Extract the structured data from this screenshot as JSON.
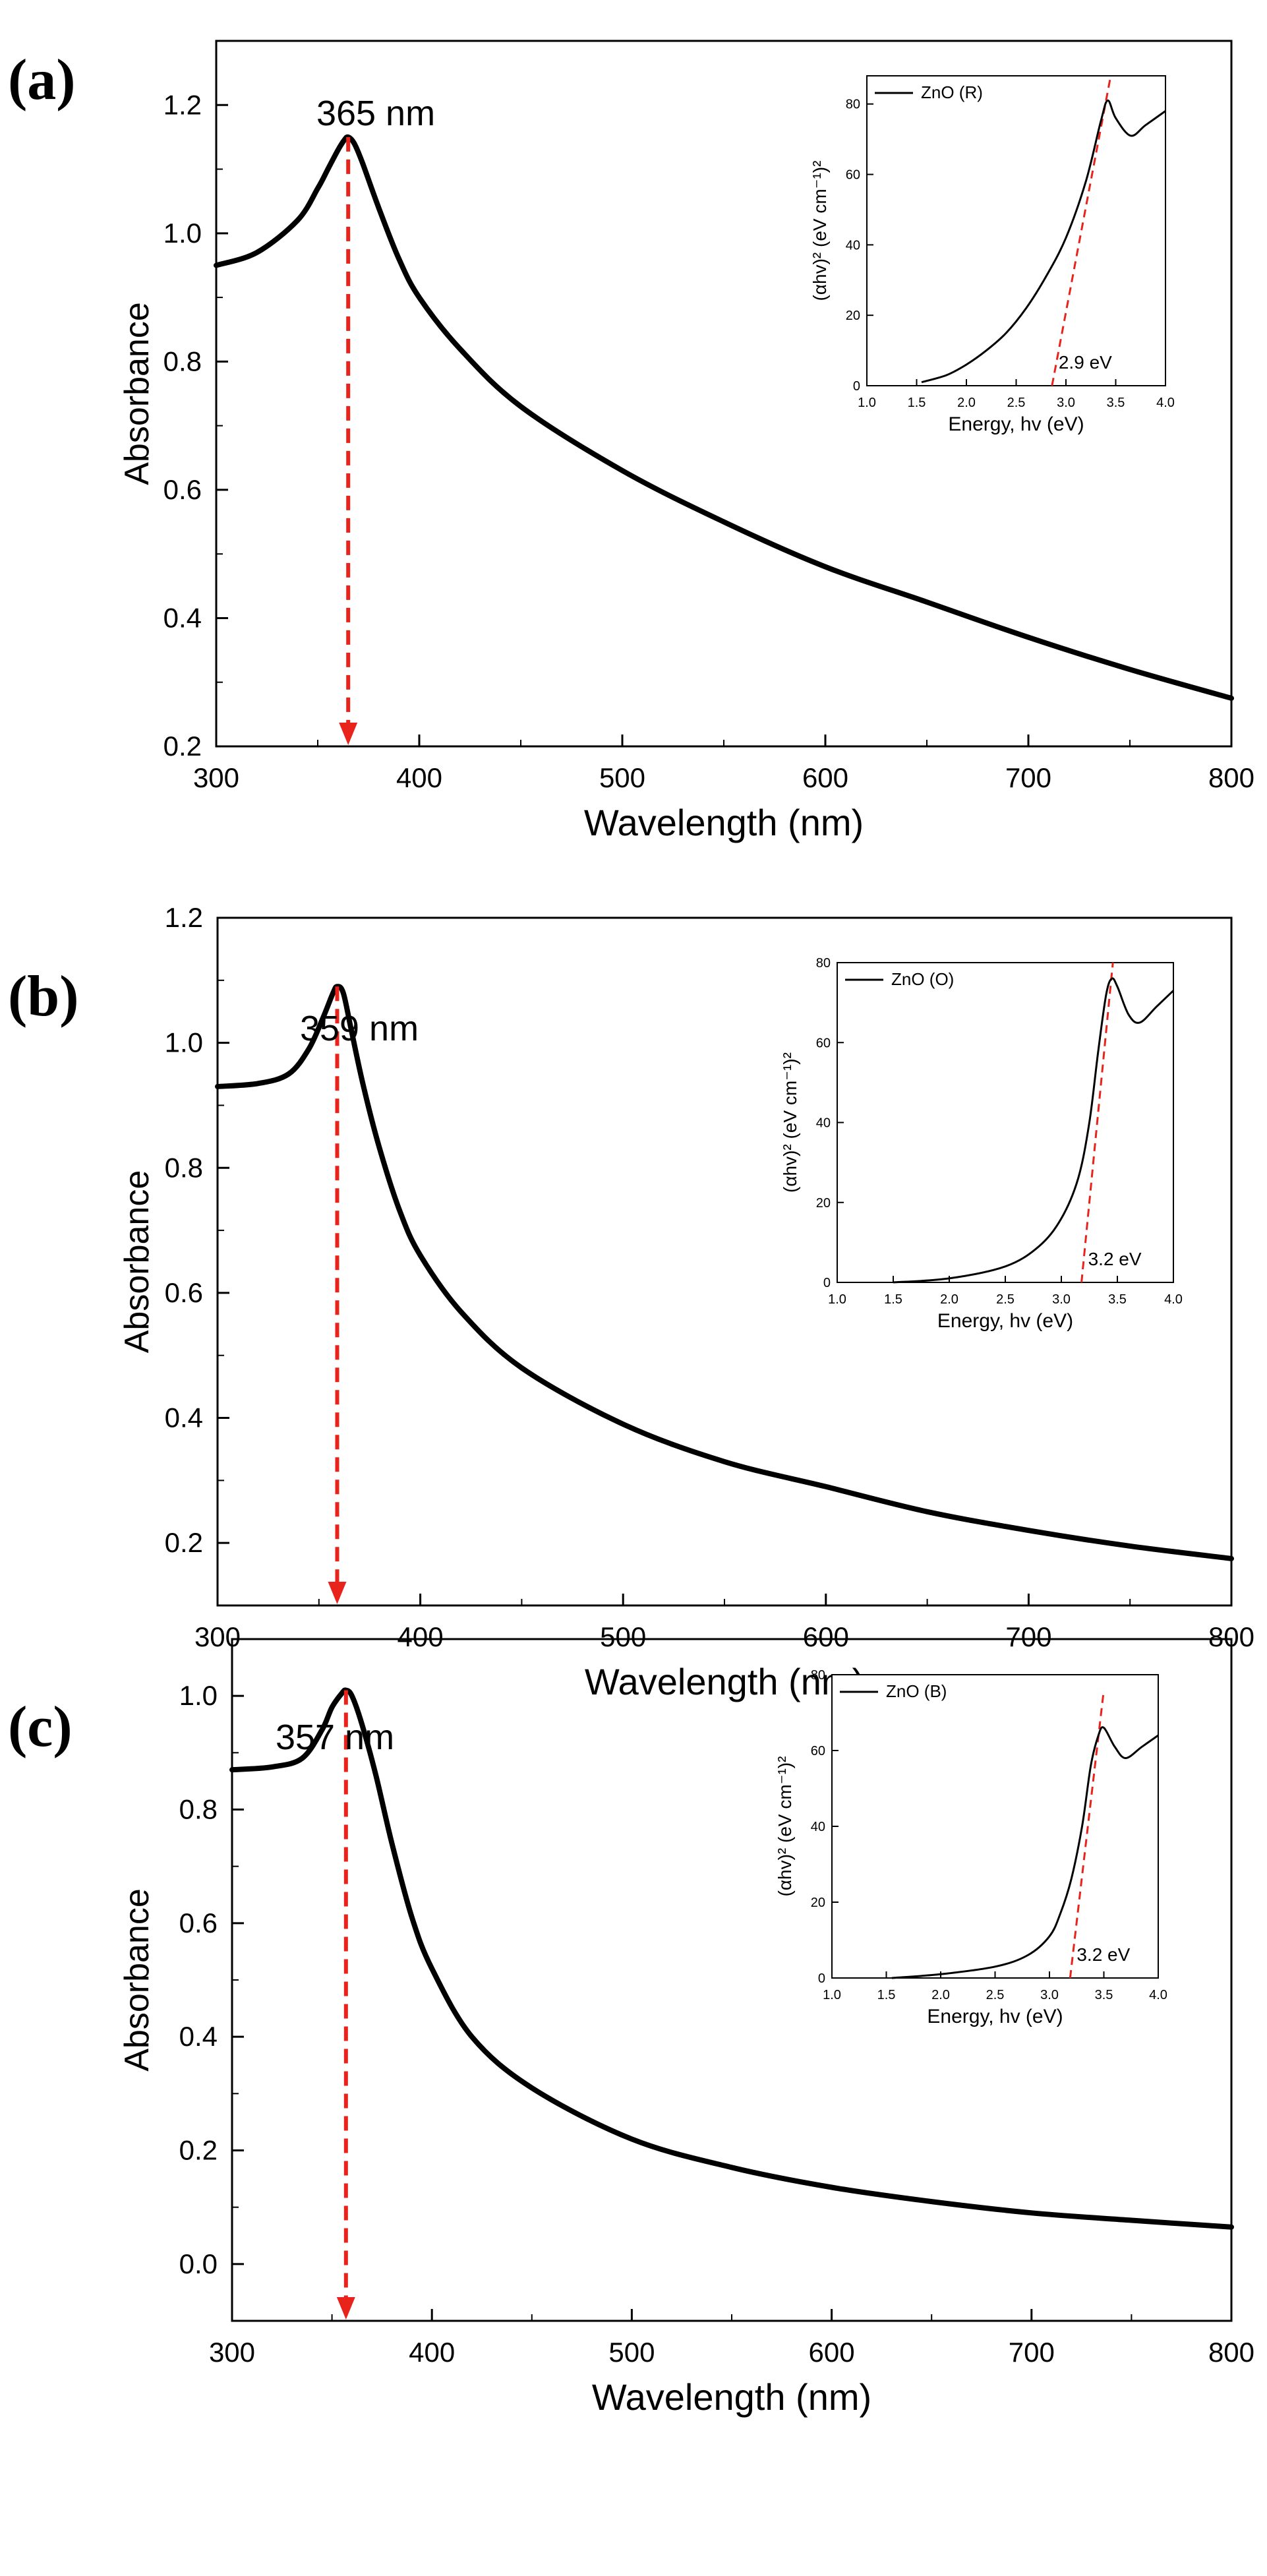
{
  "figure": {
    "background": "#ffffff",
    "curve_color": "#000000",
    "marker_color": "#e8231c"
  },
  "chart_data": [
    {
      "panel": "(a)",
      "type": "line",
      "xlabel": "Wavelength (nm)",
      "ylabel": "Absorbance",
      "xlim": [
        300,
        800
      ],
      "ylim": [
        0.2,
        1.3
      ],
      "xticks": [
        300,
        400,
        500,
        600,
        700,
        800
      ],
      "yticks": [
        0.2,
        0.4,
        0.6,
        0.8,
        1.0,
        1.2
      ],
      "peak": {
        "x": 365,
        "y": 1.15,
        "label": "365 nm"
      },
      "series": [
        {
          "name": "Absorbance",
          "x": [
            300,
            320,
            340,
            350,
            355,
            360,
            363,
            365,
            368,
            372,
            380,
            390,
            400,
            420,
            450,
            500,
            550,
            600,
            650,
            700,
            750,
            800
          ],
          "y": [
            0.95,
            0.97,
            1.02,
            1.07,
            1.1,
            1.13,
            1.145,
            1.15,
            1.14,
            1.11,
            1.04,
            0.96,
            0.9,
            0.82,
            0.73,
            0.63,
            0.55,
            0.48,
            0.425,
            0.37,
            0.32,
            0.275
          ]
        }
      ],
      "inset": {
        "xlabel": "Energy, hv (eV)",
        "ylabel": "(αhv)² (eV cm⁻¹)²",
        "legend": "ZnO (R)",
        "xlim": [
          1.0,
          4.0
        ],
        "ylim": [
          0,
          88
        ],
        "xticks": [
          1.0,
          1.5,
          2.0,
          2.5,
          3.0,
          3.5,
          4.0
        ],
        "yticks": [
          0,
          20,
          40,
          60,
          80
        ],
        "bandgap_label": "2.9 eV",
        "bandgap_line": {
          "x": [
            2.86,
            3.45
          ],
          "y": [
            0,
            88
          ]
        },
        "series": {
          "x": [
            1.55,
            1.8,
            2.0,
            2.2,
            2.4,
            2.6,
            2.8,
            3.0,
            3.2,
            3.35,
            3.42,
            3.5,
            3.65,
            3.8,
            4.0
          ],
          "y": [
            1,
            3,
            6,
            10,
            15,
            22,
            31,
            42,
            58,
            75,
            81,
            76,
            71,
            74,
            78
          ]
        }
      }
    },
    {
      "panel": "(b)",
      "type": "line",
      "xlabel": "Wavelength (nm)",
      "ylabel": "Absorbance",
      "xlim": [
        300,
        800
      ],
      "ylim": [
        0.1,
        1.2
      ],
      "xticks": [
        300,
        400,
        500,
        600,
        700,
        800
      ],
      "yticks": [
        0.2,
        0.4,
        0.6,
        0.8,
        1.0,
        1.2
      ],
      "peak": {
        "x": 359,
        "y": 1.09,
        "label": "359 nm"
      },
      "series": [
        {
          "name": "Absorbance",
          "x": [
            300,
            320,
            335,
            345,
            352,
            357,
            359,
            362,
            366,
            372,
            380,
            390,
            400,
            420,
            450,
            500,
            550,
            600,
            650,
            700,
            750,
            800
          ],
          "y": [
            0.93,
            0.935,
            0.95,
            0.99,
            1.04,
            1.08,
            1.09,
            1.08,
            1.02,
            0.93,
            0.83,
            0.73,
            0.66,
            0.57,
            0.48,
            0.39,
            0.33,
            0.29,
            0.25,
            0.22,
            0.195,
            0.175
          ]
        }
      ],
      "inset": {
        "xlabel": "Energy, hv (eV)",
        "ylabel": "(αhv)² (eV cm⁻¹)²",
        "legend": "ZnO (O)",
        "xlim": [
          1.0,
          4.0
        ],
        "ylim": [
          0,
          80
        ],
        "xticks": [
          1.0,
          1.5,
          2.0,
          2.5,
          3.0,
          3.5,
          4.0
        ],
        "yticks": [
          0,
          20,
          40,
          60,
          80
        ],
        "bandgap_label": "3.2 eV",
        "bandgap_line": {
          "x": [
            3.18,
            3.46
          ],
          "y": [
            0,
            80
          ]
        },
        "series": {
          "x": [
            1.5,
            2.0,
            2.5,
            2.8,
            3.0,
            3.15,
            3.25,
            3.33,
            3.4,
            3.45,
            3.5,
            3.6,
            3.7,
            3.85,
            4.0
          ],
          "y": [
            0,
            1,
            4,
            9,
            16,
            26,
            40,
            58,
            72,
            76,
            74,
            67,
            65,
            69,
            73
          ]
        }
      }
    },
    {
      "panel": "(c)",
      "type": "line",
      "xlabel": "Wavelength (nm)",
      "ylabel": "Absorbance",
      "xlim": [
        300,
        800
      ],
      "ylim": [
        -0.1,
        1.1
      ],
      "xticks": [
        300,
        400,
        500,
        600,
        700,
        800
      ],
      "yticks": [
        0.0,
        0.2,
        0.4,
        0.6,
        0.8,
        1.0
      ],
      "peak": {
        "x": 357,
        "y": 1.01,
        "label": "357 nm"
      },
      "series": [
        {
          "name": "Absorbance",
          "x": [
            300,
            320,
            335,
            345,
            350,
            355,
            357,
            360,
            365,
            372,
            380,
            390,
            400,
            420,
            450,
            500,
            550,
            600,
            650,
            700,
            750,
            800
          ],
          "y": [
            0.87,
            0.875,
            0.89,
            0.94,
            0.98,
            1.005,
            1.01,
            1.0,
            0.95,
            0.86,
            0.74,
            0.61,
            0.52,
            0.4,
            0.31,
            0.22,
            0.17,
            0.135,
            0.11,
            0.09,
            0.077,
            0.065
          ]
        }
      ],
      "inset": {
        "xlabel": "Energy, hv (eV)",
        "ylabel": "(αhv)² (eV cm⁻¹)²",
        "legend": "ZnO (B)",
        "xlim": [
          1.0,
          4.0
        ],
        "ylim": [
          0,
          80
        ],
        "xticks": [
          1.0,
          1.5,
          2.0,
          2.5,
          3.0,
          3.5,
          4.0
        ],
        "yticks": [
          0,
          20,
          40,
          60,
          80
        ],
        "bandgap_label": "3.2 eV",
        "bandgap_line": {
          "x": [
            3.19,
            3.5
          ],
          "y": [
            0,
            76
          ]
        },
        "series": {
          "x": [
            1.55,
            2.0,
            2.5,
            2.8,
            3.0,
            3.1,
            3.2,
            3.3,
            3.38,
            3.45,
            3.5,
            3.6,
            3.7,
            3.85,
            4.0
          ],
          "y": [
            0,
            1,
            3,
            6,
            11,
            17,
            26,
            40,
            56,
            64,
            66,
            61,
            58,
            61,
            64
          ]
        }
      }
    }
  ]
}
